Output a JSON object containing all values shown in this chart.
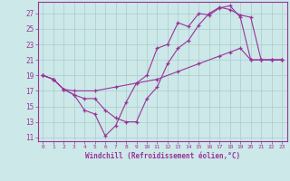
{
  "xlabel": "Windchill (Refroidissement éolien,°C)",
  "background_color": "#cce8e8",
  "grid_color": "#aacccc",
  "line_color": "#993399",
  "xlim": [
    -0.5,
    23.5
  ],
  "ylim": [
    10.5,
    28.5
  ],
  "yticks": [
    11,
    13,
    15,
    17,
    19,
    21,
    23,
    25,
    27
  ],
  "xticks": [
    0,
    1,
    2,
    3,
    4,
    5,
    6,
    7,
    8,
    9,
    10,
    11,
    12,
    13,
    14,
    15,
    16,
    17,
    18,
    19,
    20,
    21,
    22,
    23
  ],
  "line1_x": [
    0,
    1,
    2,
    3,
    4,
    5,
    6,
    7,
    8,
    9,
    10,
    11,
    12,
    13,
    14,
    15,
    16,
    17,
    18,
    19,
    20,
    21,
    22,
    23
  ],
  "line1_y": [
    19,
    18.5,
    17.2,
    16.5,
    14.5,
    14.0,
    11.2,
    12.5,
    15.5,
    18.0,
    19.0,
    22.5,
    23.0,
    25.8,
    25.3,
    27.0,
    26.8,
    27.7,
    28.0,
    26.5,
    21.0,
    21.0,
    21.0,
    21.0
  ],
  "line2_x": [
    0,
    1,
    2,
    3,
    4,
    5,
    6,
    7,
    8,
    9,
    10,
    11,
    12,
    13,
    14,
    15,
    16,
    17,
    18,
    19,
    20,
    21,
    22,
    23
  ],
  "line2_y": [
    19,
    18.5,
    17.2,
    16.5,
    16.0,
    16.0,
    14.5,
    13.5,
    13.0,
    13.0,
    16.0,
    17.5,
    20.5,
    22.5,
    23.5,
    25.5,
    27.0,
    27.8,
    27.5,
    26.8,
    26.5,
    21.0,
    21.0,
    21.0
  ],
  "line3_x": [
    0,
    1,
    2,
    3,
    5,
    7,
    9,
    11,
    13,
    15,
    17,
    18,
    19,
    20,
    21,
    22,
    23
  ],
  "line3_y": [
    19,
    18.5,
    17.2,
    17.0,
    17.0,
    17.5,
    18.0,
    18.5,
    19.5,
    20.5,
    21.5,
    22.0,
    22.5,
    21.0,
    21.0,
    21.0,
    21.0
  ]
}
